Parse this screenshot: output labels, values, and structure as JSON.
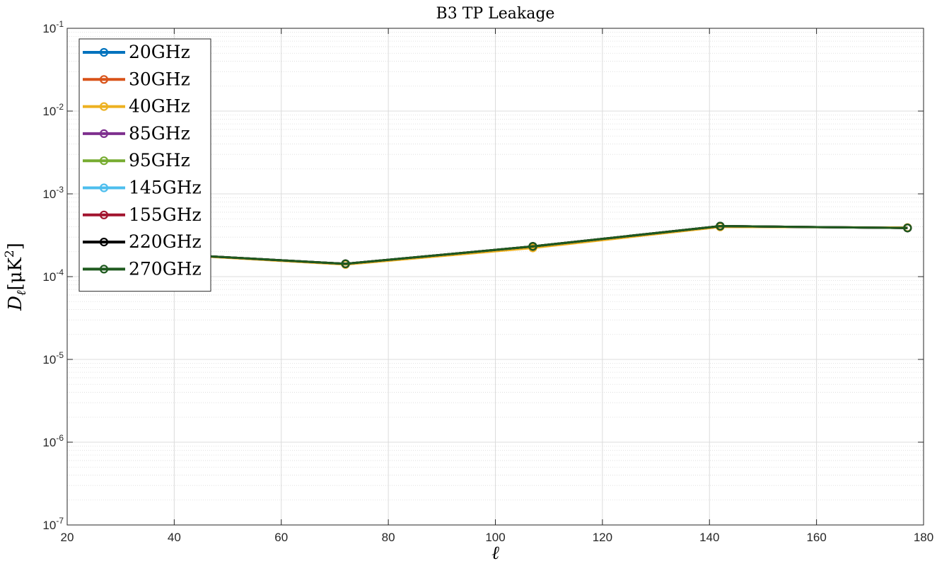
{
  "chart_data": {
    "type": "line",
    "title": "B3 TP Leakage",
    "xlabel": "ℓ",
    "ylabel": "D",
    "ylabel_sub": "ℓ",
    "ylabel_units": "[μK",
    "ylabel_units_exp": "2",
    "ylabel_units_close": "]",
    "xlim": [
      20,
      180
    ],
    "ylim": [
      1e-07,
      0.1
    ],
    "yscale": "log",
    "xticks": [
      20,
      40,
      60,
      80,
      100,
      120,
      140,
      160,
      180
    ],
    "ytick_base": "10",
    "yticks": [
      {
        "value": 1e-07,
        "exp": "-7"
      },
      {
        "value": 1e-06,
        "exp": "-6"
      },
      {
        "value": 1e-05,
        "exp": "-5"
      },
      {
        "value": 0.0001,
        "exp": "-4"
      },
      {
        "value": 0.001,
        "exp": "-3"
      },
      {
        "value": 0.01,
        "exp": "-2"
      },
      {
        "value": 0.1,
        "exp": "-1"
      }
    ],
    "grid": true,
    "legend_position": "top-left",
    "x": [
      37,
      72,
      107,
      142,
      177
    ],
    "series": [
      {
        "name": "20GHz",
        "color": "#0072BD",
        "values": [
          0.00019,
          0.000143,
          0.000232,
          0.000408,
          0.000387
        ]
      },
      {
        "name": "30GHz",
        "color": "#D95319",
        "values": [
          0.00019,
          0.000143,
          0.000232,
          0.000408,
          0.000387
        ]
      },
      {
        "name": "40GHz",
        "color": "#EDB120",
        "values": [
          0.000188,
          0.00014,
          0.000222,
          0.000398,
          0.000392
        ]
      },
      {
        "name": "85GHz",
        "color": "#7E2F8E",
        "values": [
          0.00019,
          0.000143,
          0.000232,
          0.000408,
          0.000387
        ]
      },
      {
        "name": "95GHz",
        "color": "#77AC30",
        "values": [
          0.00019,
          0.000143,
          0.000232,
          0.000408,
          0.000387
        ]
      },
      {
        "name": "145GHz",
        "color": "#4DBEEE",
        "values": [
          0.00019,
          0.000143,
          0.000232,
          0.000408,
          0.000387
        ]
      },
      {
        "name": "155GHz",
        "color": "#A2142F",
        "values": [
          0.00019,
          0.000143,
          0.000232,
          0.000408,
          0.000387
        ]
      },
      {
        "name": "220GHz",
        "color": "#000000",
        "values": [
          0.00019,
          0.000143,
          0.000232,
          0.000408,
          0.000387
        ]
      },
      {
        "name": "270GHz",
        "color": "#1F5A1F",
        "values": [
          0.00019,
          0.000143,
          0.000232,
          0.000408,
          0.000387
        ]
      }
    ]
  }
}
